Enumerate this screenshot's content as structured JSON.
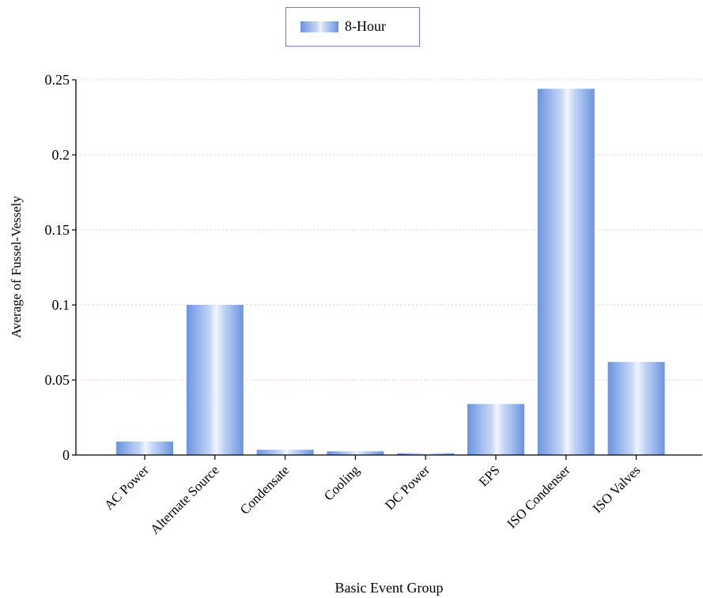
{
  "chart_data": {
    "type": "bar",
    "categories": [
      "AC Power",
      "Alternate Source",
      "Condensate",
      "Cooling",
      "DC Power",
      "EPS",
      "ISO Condenser",
      "ISO Valves"
    ],
    "series": [
      {
        "name": "8-Hour",
        "values": [
          0.009,
          0.1,
          0.0035,
          0.0025,
          0.0012,
          0.034,
          0.244,
          0.062
        ]
      }
    ],
    "xlabel": "Basic Event Group",
    "ylabel": "Average of Fussel-Vessely",
    "ylim": [
      0,
      0.25
    ],
    "yticks": [
      0,
      0.05,
      0.1,
      0.15,
      0.2,
      0.25
    ],
    "ytick_labels": [
      "0",
      "0.05",
      "0.1",
      "0.15",
      "0.2",
      "0.25"
    ],
    "grid": true,
    "legend_position": "top-center",
    "colors": {
      "bar_dark": "#6a93e0",
      "bar_light": "#f1f5fd",
      "grid_alt1": "#f4c7c3",
      "grid_alt2": "#bcdcd8",
      "legend_border": "#7a7ae6"
    }
  }
}
